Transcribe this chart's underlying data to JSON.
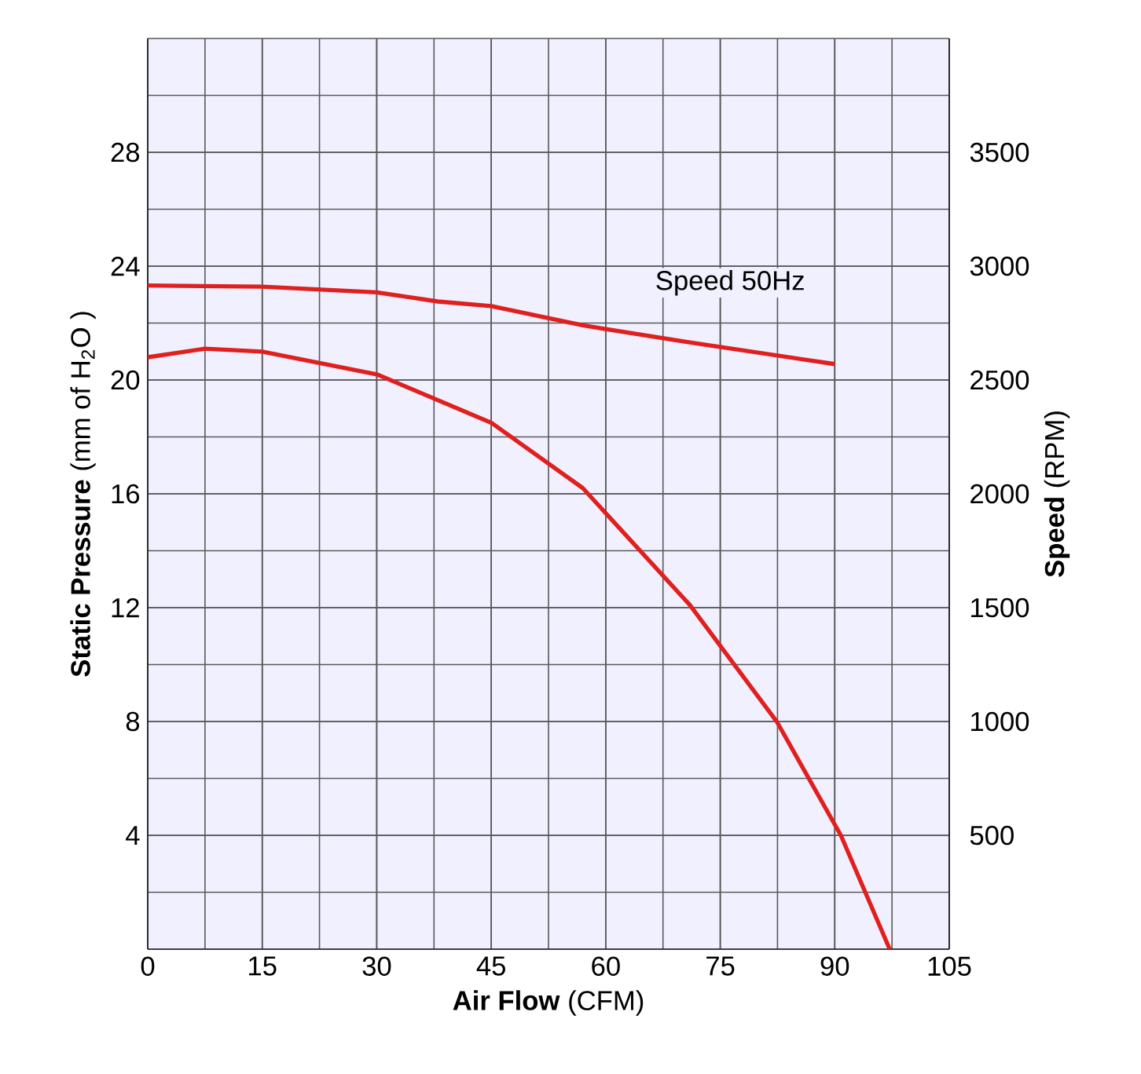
{
  "chart_data": {
    "type": "line",
    "xlabel": "**Air Flow** (CFM)",
    "ylabel": "**Static Pressure** (mm of H$_{2}$O )",
    "y2label": "**Speed** (RPM)",
    "xlim": [
      0,
      105
    ],
    "xticks": [
      0,
      15,
      30,
      45,
      60,
      75,
      90,
      105
    ],
    "ylim": [
      0,
      32
    ],
    "yticks": [
      4,
      8,
      12,
      16,
      20,
      24,
      28
    ],
    "y2lim": [
      0,
      4000
    ],
    "y2ticks": [
      500,
      1000,
      1500,
      2000,
      2500,
      3000,
      3500
    ],
    "grid": true,
    "marker": "none",
    "line_style": "solid",
    "annotations": [
      "Speed 50Hz"
    ],
    "series": [
      {
        "color": "#e0201e",
        "x": [
          0,
          7.5,
          15,
          30,
          45,
          57,
          71,
          82.4,
          90.8,
          97.2
        ],
        "values": [
          20.8,
          21.1,
          21.0,
          20.2,
          18.5,
          16.2,
          12.1,
          8.0,
          4.0,
          0
        ]
      },
      {
        "color": "#e0201e",
        "axis": "y2",
        "x": [
          0,
          15,
          30,
          38,
          45,
          57,
          71,
          90
        ],
        "values": [
          2915,
          2910,
          2885,
          2845,
          2825,
          2740,
          2665,
          2570
        ]
      }
    ]
  }
}
